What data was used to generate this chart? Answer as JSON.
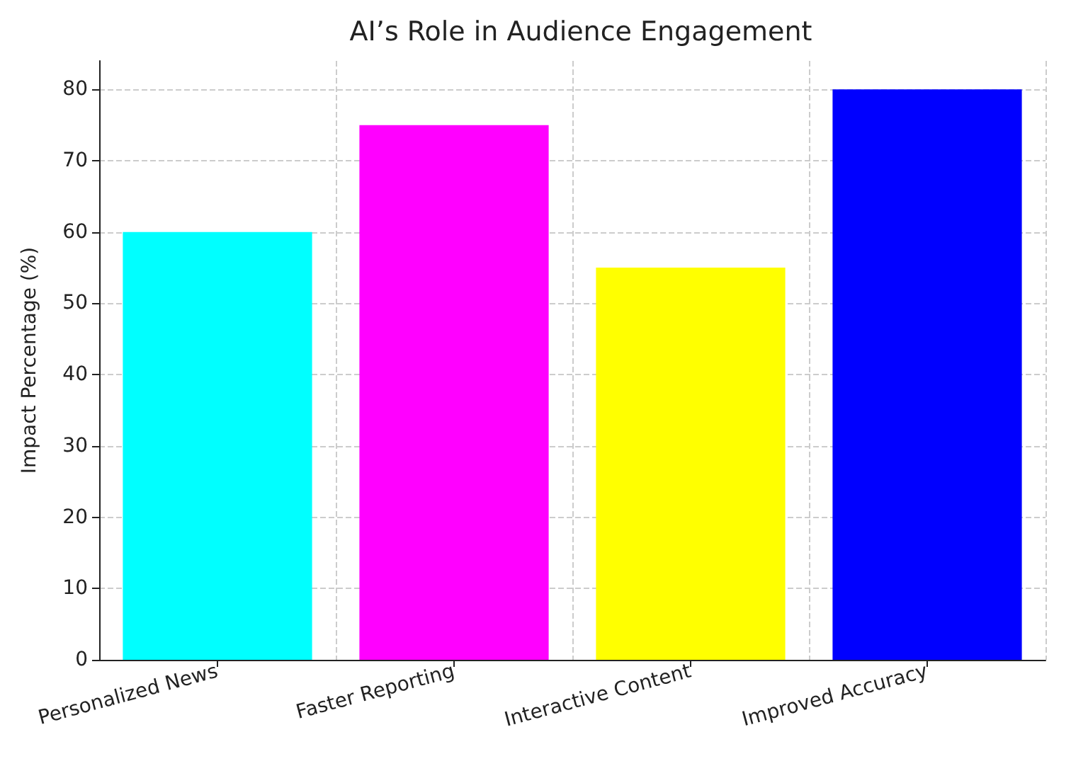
{
  "chart_data": {
    "type": "bar",
    "title": "AI’s Role in Audience Engagement",
    "ylabel": "Impact Percentage (%)",
    "categories": [
      "Personalized News",
      "Faster Reporting",
      "Interactive Content",
      "Improved Accuracy"
    ],
    "values": [
      60,
      75,
      55,
      80
    ],
    "colors": [
      "#00ffff",
      "#ff00ff",
      "#ffff00",
      "#0000ff"
    ],
    "ylim": [
      0,
      84
    ],
    "yticks": [
      0,
      10,
      20,
      30,
      40,
      50,
      60,
      70,
      80
    ],
    "grid": true
  }
}
